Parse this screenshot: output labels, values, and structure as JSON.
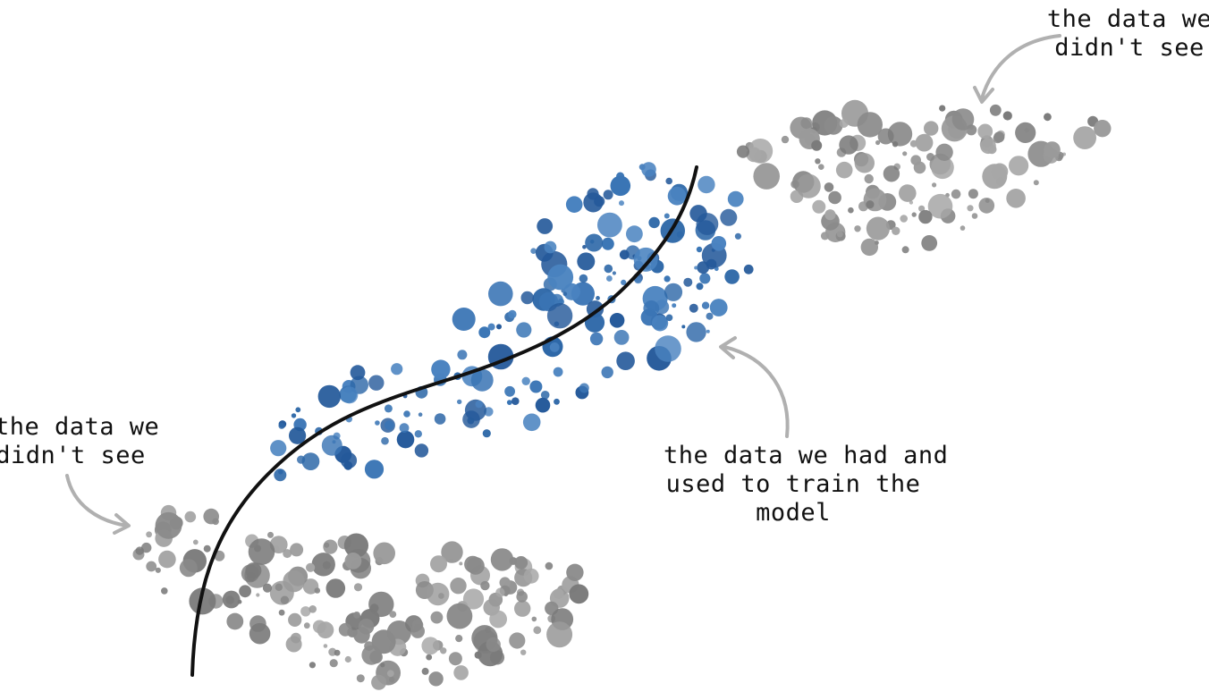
{
  "labels": {
    "unseen_right": [
      "the data we",
      "didn't see"
    ],
    "unseen_left": [
      "the data we",
      "didn't see"
    ],
    "training": [
      "the data we had and",
      "used to train the",
      "model"
    ]
  },
  "colors": {
    "training_points": "#2e68a8",
    "unseen_points": "#8a8a8a",
    "model_curve": "#111111",
    "arrow": "#b0b0b0",
    "text": "#111111"
  }
}
